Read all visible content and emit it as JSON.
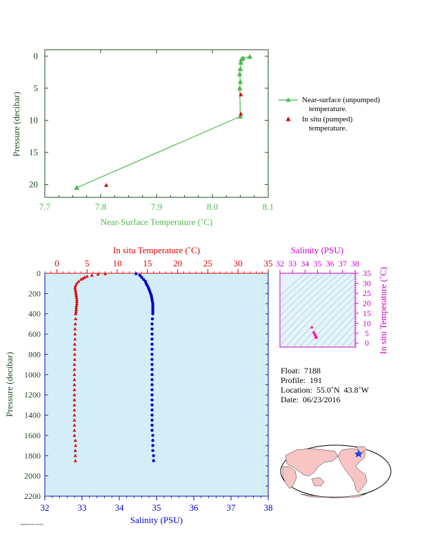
{
  "colors": {
    "near_surface": "#4cb84c",
    "insitu": "#e00000",
    "salinity_blue": "#0000cc",
    "axis_dark": "#1f4a1f",
    "salinity_axis": "#cc00cc",
    "panel_bg": "#d3eef8",
    "land": "#f8c4c4",
    "ocean": "#ffffff"
  },
  "chart_data": [
    {
      "type": "line",
      "panel": "near-surface",
      "xlabel": "Near-Surface Temperature (˚C)",
      "ylabel": "Pressure (decibar)",
      "xlim": [
        7.7,
        8.1
      ],
      "ylim": [
        22,
        -1
      ],
      "x_ticks": [
        "7.7",
        "7.8",
        "7.9",
        "8.0",
        "8.1"
      ],
      "y_ticks": [
        "0",
        "5",
        "10",
        "15",
        "20"
      ],
      "series": [
        {
          "name": "Near-surface (unpumped)",
          "name_line2": "temperature.",
          "marker": "triangle",
          "points": [
            [
              8.067,
              0.1
            ],
            [
              8.055,
              0.3
            ],
            [
              8.052,
              0.5
            ],
            [
              8.051,
              1.0
            ],
            [
              8.05,
              2.0
            ],
            [
              8.049,
              2.8
            ],
            [
              8.05,
              4.0
            ],
            [
              8.049,
              5.0
            ],
            [
              8.05,
              9.4
            ],
            [
              7.757,
              20.5
            ]
          ]
        },
        {
          "name": "In situ (pumped)",
          "name_line2": "temperature.",
          "marker": "triangle",
          "points": [
            [
              8.051,
              6.0
            ],
            [
              8.051,
              9.0
            ],
            [
              7.81,
              20.1
            ]
          ]
        }
      ],
      "legend": "right"
    },
    {
      "type": "scatter",
      "panel": "profile",
      "ylabel": "Pressure (decibar)",
      "ylim": [
        2200,
        0
      ],
      "y_ticks": [
        "0",
        "200",
        "400",
        "600",
        "800",
        "1000",
        "1200",
        "1400",
        "1600",
        "1800",
        "2000",
        "2200"
      ],
      "top_axis": {
        "label": "In situ Temperature (˚C)",
        "lim": [
          -2,
          35
        ],
        "ticks": [
          "0",
          "5",
          "10",
          "15",
          "20",
          "25",
          "30",
          "35"
        ]
      },
      "bottom_axis": {
        "label": "Salinity (PSU)",
        "lim": [
          32,
          38
        ],
        "ticks": [
          "32",
          "33",
          "34",
          "35",
          "36",
          "37",
          "38"
        ]
      },
      "temperature_series": {
        "pressure": [
          5,
          10,
          20,
          30,
          40,
          50,
          60,
          80,
          100,
          120,
          140,
          160,
          180,
          200,
          220,
          240,
          260,
          280,
          300,
          320,
          340,
          360,
          380,
          400,
          450,
          500,
          550,
          600,
          650,
          700,
          750,
          800,
          850,
          900,
          950,
          1000,
          1050,
          1100,
          1150,
          1200,
          1250,
          1300,
          1350,
          1400,
          1450,
          1500,
          1550,
          1600,
          1650,
          1700,
          1750,
          1800,
          1850
        ],
        "values": [
          8.0,
          6.8,
          5.8,
          5.0,
          4.6,
          4.3,
          4.0,
          3.6,
          3.3,
          3.1,
          3.0,
          3.05,
          3.1,
          3.15,
          3.2,
          3.25,
          3.3,
          3.3,
          3.3,
          3.25,
          3.2,
          3.2,
          3.15,
          3.1,
          3.1,
          3.05,
          3.0,
          3.0,
          3.0,
          2.95,
          2.95,
          2.95,
          2.95,
          2.9,
          2.9,
          2.9,
          2.9,
          2.9,
          2.9,
          2.9,
          2.9,
          2.9,
          2.9,
          2.9,
          2.9,
          2.9,
          2.9,
          2.9,
          3.05,
          3.1,
          3.05,
          3.05,
          3.05
        ]
      },
      "salinity_series": {
        "pressure": [
          5,
          20,
          40,
          60,
          80,
          100,
          120,
          140,
          160,
          180,
          200,
          220,
          240,
          260,
          280,
          300,
          320,
          340,
          360,
          380,
          400,
          450,
          500,
          550,
          600,
          650,
          700,
          750,
          800,
          850,
          900,
          950,
          1000,
          1050,
          1100,
          1150,
          1200,
          1250,
          1300,
          1350,
          1400,
          1450,
          1500,
          1550,
          1600,
          1650,
          1700,
          1750,
          1800,
          1850
        ],
        "values": [
          34.45,
          34.55,
          34.6,
          34.65,
          34.7,
          34.72,
          34.75,
          34.78,
          34.8,
          34.82,
          34.84,
          34.86,
          34.87,
          34.88,
          34.89,
          34.9,
          34.9,
          34.9,
          34.9,
          34.9,
          34.9,
          34.89,
          34.88,
          34.88,
          34.88,
          34.88,
          34.88,
          34.88,
          34.88,
          34.88,
          34.88,
          34.88,
          34.88,
          34.88,
          34.88,
          34.88,
          34.88,
          34.88,
          34.88,
          34.88,
          34.88,
          34.88,
          34.88,
          34.88,
          34.9,
          34.9,
          34.9,
          34.9,
          34.92,
          34.92
        ]
      }
    },
    {
      "type": "scatter",
      "panel": "ts-diagram",
      "xlabel": "Salinity (PSU)",
      "ylabel": "In situ Temperature (˚C)",
      "xlim": [
        32,
        38
      ],
      "ylim": [
        -2,
        35
      ],
      "x_ticks": [
        "32",
        "33",
        "34",
        "35",
        "36",
        "37",
        "38"
      ],
      "y_ticks": [
        "0",
        "5",
        "10",
        "15",
        "20",
        "25",
        "30",
        "35"
      ],
      "points": [
        [
          34.55,
          8.0
        ],
        [
          34.7,
          5.6
        ],
        [
          34.75,
          5.0
        ],
        [
          34.8,
          4.4
        ],
        [
          34.85,
          3.9
        ],
        [
          34.88,
          3.5
        ],
        [
          34.9,
          3.2
        ],
        [
          34.9,
          3.0
        ],
        [
          34.88,
          2.95
        ],
        [
          34.88,
          2.9
        ],
        [
          34.9,
          3.05
        ]
      ]
    }
  ],
  "info": {
    "float": "Float:  7188",
    "profile": "Profile:  191",
    "location": "Location:  55.0˚N  43.8˚W",
    "date": "Date:  06/23/2016"
  },
  "footnote": "PROFILEPLOT  5/30/2018"
}
